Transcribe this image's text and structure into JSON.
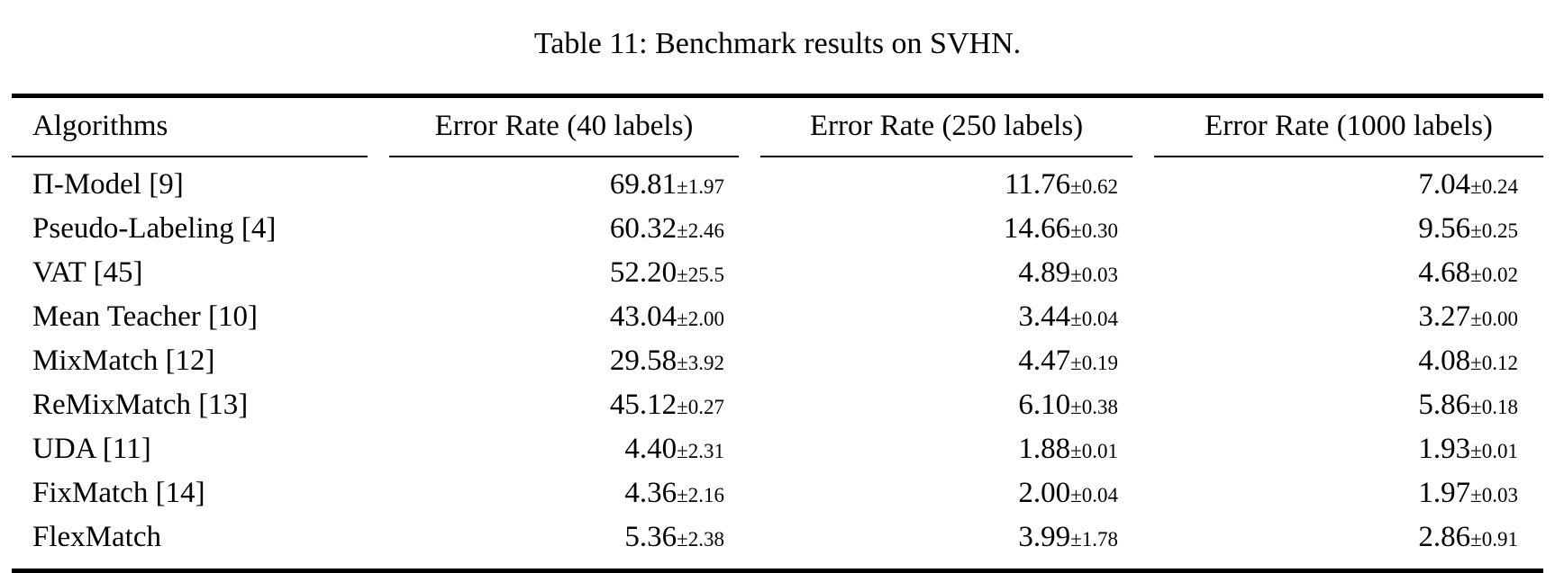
{
  "page": {
    "caption": "Table 11: Benchmark results on SVHN."
  },
  "table": {
    "columns": [
      "Algorithms",
      "Error Rate (40 labels)",
      "Error Rate (250 labels)",
      "Error Rate (1000 labels)"
    ],
    "rows": [
      {
        "algorithm": "Π-Model [9]",
        "cells": [
          {
            "mean": "69.81",
            "err": "±1.97"
          },
          {
            "mean": "11.76",
            "err": "±0.62"
          },
          {
            "mean": "7.04",
            "err": "±0.24"
          }
        ]
      },
      {
        "algorithm": "Pseudo-Labeling [4]",
        "cells": [
          {
            "mean": "60.32",
            "err": "±2.46"
          },
          {
            "mean": "14.66",
            "err": "±0.30"
          },
          {
            "mean": "9.56",
            "err": "±0.25"
          }
        ]
      },
      {
        "algorithm": "VAT [45]",
        "cells": [
          {
            "mean": "52.20",
            "err": "±25.5"
          },
          {
            "mean": "4.89",
            "err": "±0.03"
          },
          {
            "mean": "4.68",
            "err": "±0.02"
          }
        ]
      },
      {
        "algorithm": "Mean Teacher [10]",
        "cells": [
          {
            "mean": "43.04",
            "err": "±2.00"
          },
          {
            "mean": "3.44",
            "err": "±0.04"
          },
          {
            "mean": "3.27",
            "err": "±0.00"
          }
        ]
      },
      {
        "algorithm": "MixMatch [12]",
        "cells": [
          {
            "mean": "29.58",
            "err": "±3.92"
          },
          {
            "mean": "4.47",
            "err": "±0.19"
          },
          {
            "mean": "4.08",
            "err": "±0.12"
          }
        ]
      },
      {
        "algorithm": "ReMixMatch [13]",
        "cells": [
          {
            "mean": "45.12",
            "err": "±0.27"
          },
          {
            "mean": "6.10",
            "err": "±0.38"
          },
          {
            "mean": "5.86",
            "err": "±0.18"
          }
        ]
      },
      {
        "algorithm": "UDA [11]",
        "cells": [
          {
            "mean": "4.40",
            "err": "±2.31"
          },
          {
            "mean": "1.88",
            "err": "±0.01"
          },
          {
            "mean": "1.93",
            "err": "±0.01"
          }
        ]
      },
      {
        "algorithm": "FixMatch [14]",
        "cells": [
          {
            "mean": "4.36",
            "err": "±2.16"
          },
          {
            "mean": "2.00",
            "err": "±0.04"
          },
          {
            "mean": "1.97",
            "err": "±0.03"
          }
        ]
      },
      {
        "algorithm": "FlexMatch",
        "cells": [
          {
            "mean": "5.36",
            "err": "±2.38"
          },
          {
            "mean": "3.99",
            "err": "±1.78"
          },
          {
            "mean": "2.86",
            "err": "±0.91"
          }
        ]
      }
    ]
  },
  "chart_data": {
    "type": "table",
    "title": "Table 11: Benchmark results on SVHN.",
    "columns": [
      "Algorithms",
      "Error Rate (40 labels)",
      "Error Rate (250 labels)",
      "Error Rate (1000 labels)"
    ],
    "series": [
      {
        "name": "Π-Model [9]",
        "values": [
          69.81,
          11.76,
          7.04
        ],
        "stds": [
          1.97,
          0.62,
          0.24
        ]
      },
      {
        "name": "Pseudo-Labeling [4]",
        "values": [
          60.32,
          14.66,
          9.56
        ],
        "stds": [
          2.46,
          0.3,
          0.25
        ]
      },
      {
        "name": "VAT [45]",
        "values": [
          52.2,
          4.89,
          4.68
        ],
        "stds": [
          25.5,
          0.03,
          0.02
        ]
      },
      {
        "name": "Mean Teacher [10]",
        "values": [
          43.04,
          3.44,
          3.27
        ],
        "stds": [
          2.0,
          0.04,
          0.0
        ]
      },
      {
        "name": "MixMatch [12]",
        "values": [
          29.58,
          4.47,
          4.08
        ],
        "stds": [
          3.92,
          0.19,
          0.12
        ]
      },
      {
        "name": "ReMixMatch [13]",
        "values": [
          45.12,
          6.1,
          5.86
        ],
        "stds": [
          0.27,
          0.38,
          0.18
        ]
      },
      {
        "name": "UDA [11]",
        "values": [
          4.4,
          1.88,
          1.93
        ],
        "stds": [
          2.31,
          0.01,
          0.01
        ]
      },
      {
        "name": "FixMatch [14]",
        "values": [
          4.36,
          2.0,
          1.97
        ],
        "stds": [
          2.16,
          0.04,
          0.03
        ]
      },
      {
        "name": "FlexMatch",
        "values": [
          5.36,
          3.99,
          2.86
        ],
        "stds": [
          2.38,
          1.78,
          0.91
        ]
      }
    ]
  }
}
